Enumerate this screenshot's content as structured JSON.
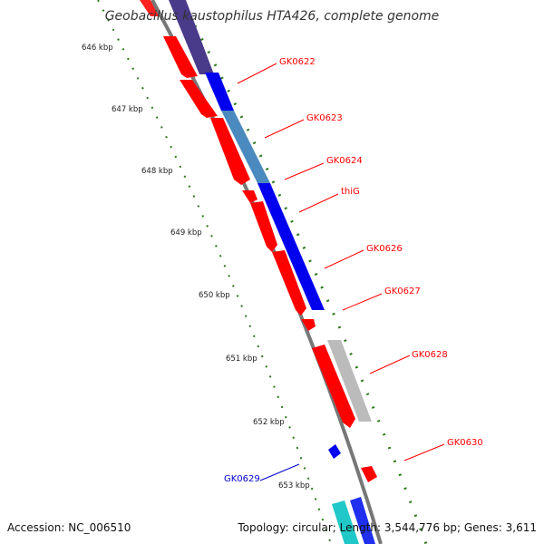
{
  "title": "Geobacillus kaustophilus HTA426, complete genome",
  "footer": {
    "accession": "Accession: NC_006510",
    "summary": "Topology: circular; Length: 3,544,776 bp; Genes: 3,611"
  },
  "colors": {
    "forward_cds": "#ff0000",
    "reverse_cds": "#0000ff",
    "forward_label": "#ff0000",
    "reverse_label": "#0000cc",
    "backbone": "#888888",
    "ticks": "#2a7a1a"
  },
  "scale_labels": [
    "646 kbp",
    "647 kbp",
    "648 kbp",
    "649 kbp",
    "650 kbp",
    "651 kbp",
    "652 kbp",
    "653 kbp"
  ],
  "gene_labels": [
    {
      "text": "GK0622",
      "strand": "forward"
    },
    {
      "text": "GK0623",
      "strand": "forward"
    },
    {
      "text": "GK0624",
      "strand": "forward"
    },
    {
      "text": "thiG",
      "strand": "forward"
    },
    {
      "text": "GK0626",
      "strand": "forward"
    },
    {
      "text": "GK0627",
      "strand": "forward"
    },
    {
      "text": "GK0628",
      "strand": "forward"
    },
    {
      "text": "GK0630",
      "strand": "forward"
    },
    {
      "text": "GK0629",
      "strand": "reverse"
    }
  ]
}
